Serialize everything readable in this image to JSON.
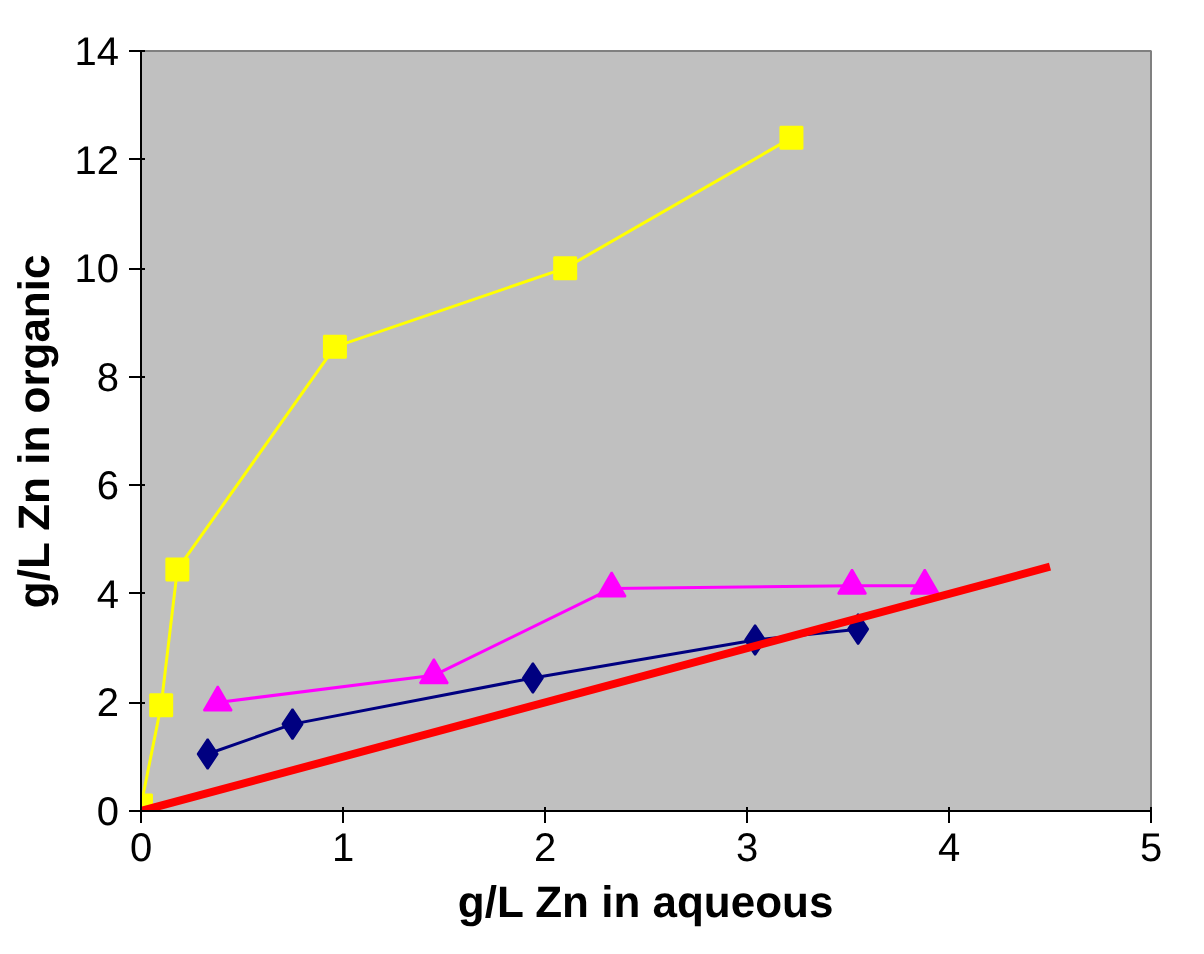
{
  "chart_data": {
    "type": "line",
    "xlabel": "g/L Zn in aqueous",
    "ylabel": "g/L Zn in organic",
    "xlim": [
      0,
      5
    ],
    "ylim": [
      0,
      14
    ],
    "xticks": [
      0,
      1,
      2,
      3,
      4,
      5
    ],
    "yticks": [
      0,
      2,
      4,
      6,
      8,
      10,
      12,
      14
    ],
    "grid": false,
    "series": [
      {
        "color": "#ffff00",
        "marker": "square",
        "x": [
          0,
          0.1,
          0.18,
          0.96,
          2.1,
          3.22
        ],
        "values": [
          0.1,
          1.95,
          4.45,
          8.55,
          10,
          12.4
        ]
      },
      {
        "color": "#ff00ff",
        "marker": "triangle",
        "x": [
          0.38,
          1.45,
          2.33,
          3.52,
          3.88
        ],
        "values": [
          2,
          2.5,
          4.1,
          4.15,
          4.15
        ]
      },
      {
        "color": "#000080",
        "marker": "diamond",
        "x": [
          0.33,
          0.75,
          1.94,
          3.04,
          3.55
        ],
        "values": [
          1.05,
          1.6,
          2.45,
          3.15,
          3.35
        ]
      },
      {
        "color": "#ff0000",
        "marker": "none",
        "x": [
          0,
          4.5
        ],
        "values": [
          0,
          4.5
        ]
      }
    ]
  }
}
